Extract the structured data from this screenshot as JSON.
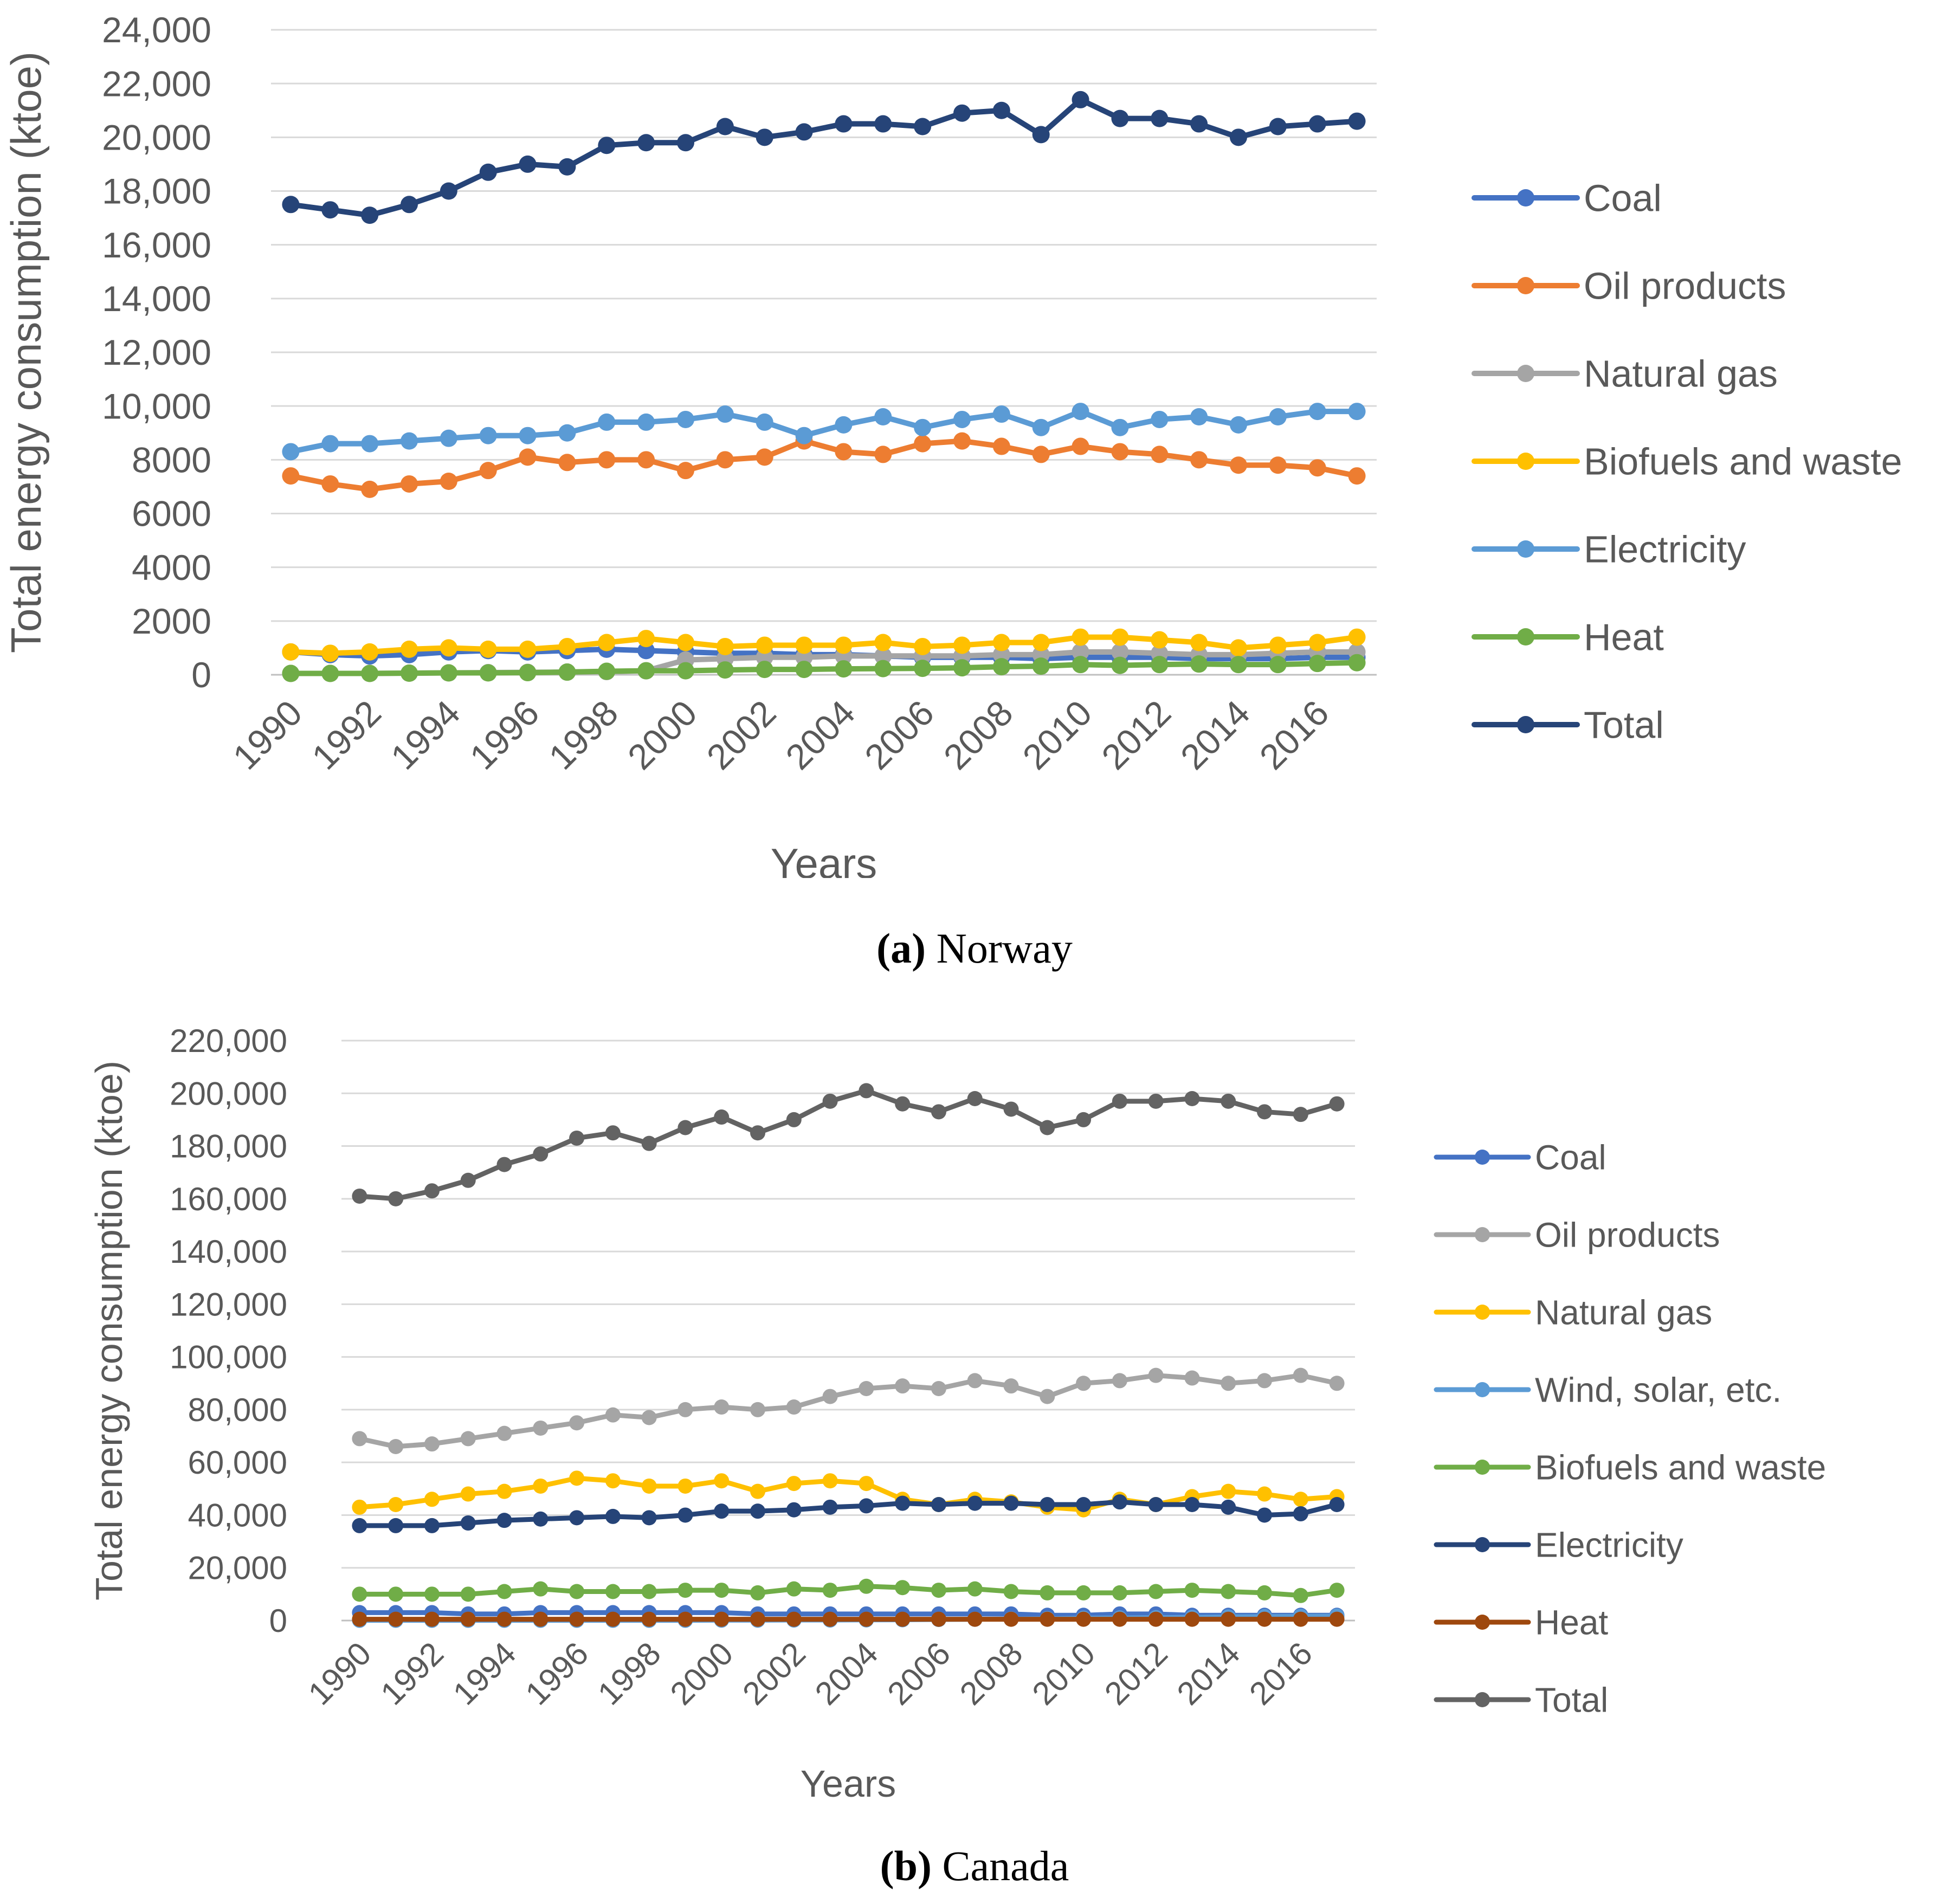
{
  "chart_data": [
    {
      "id": "norway",
      "type": "line",
      "caption_letter": "(a)",
      "caption_text": "Norway",
      "xlabel": "Years",
      "ylabel": "Total energy consumption (ktoe)",
      "ylim": [
        0,
        24000
      ],
      "yticks": [
        "0",
        "2000",
        "4000",
        "6000",
        "8000",
        "10,000",
        "12,000",
        "14,000",
        "16,000",
        "18,000",
        "20,000",
        "22,000",
        "24,000"
      ],
      "x": [
        1990,
        1991,
        1992,
        1993,
        1994,
        1995,
        1996,
        1997,
        1998,
        1999,
        2000,
        2001,
        2002,
        2003,
        2004,
        2005,
        2006,
        2007,
        2008,
        2009,
        2010,
        2011,
        2012,
        2013,
        2014,
        2015,
        2016,
        2017
      ],
      "xtick_labels": [
        "1990",
        "1992",
        "1994",
        "1996",
        "1998",
        "2000",
        "2002",
        "2004",
        "2006",
        "2008",
        "2010",
        "2012",
        "2014",
        "2016"
      ],
      "series": [
        {
          "name": "Coal",
          "color": "#4472C4",
          "values": [
            850,
            750,
            700,
            750,
            850,
            900,
            850,
            900,
            950,
            900,
            850,
            800,
            800,
            750,
            750,
            700,
            650,
            650,
            650,
            600,
            650,
            650,
            650,
            600,
            600,
            600,
            650,
            650
          ]
        },
        {
          "name": "Oil products",
          "color": "#ED7D31",
          "values": [
            7400,
            7100,
            6900,
            7100,
            7200,
            7600,
            8100,
            7900,
            8000,
            8000,
            7600,
            8000,
            8100,
            8700,
            8300,
            8200,
            8600,
            8700,
            8500,
            8200,
            8500,
            8300,
            8200,
            8000,
            7800,
            7800,
            7700,
            7400
          ]
        },
        {
          "name": "Natural gas",
          "color": "#A5A5A5",
          "values": [
            50,
            50,
            50,
            60,
            70,
            80,
            90,
            100,
            120,
            150,
            550,
            600,
            650,
            650,
            700,
            700,
            700,
            700,
            750,
            750,
            850,
            850,
            800,
            750,
            750,
            800,
            850,
            850
          ]
        },
        {
          "name": "Biofuels and waste",
          "color": "#FFC000",
          "values": [
            850,
            800,
            850,
            950,
            1000,
            950,
            950,
            1050,
            1200,
            1350,
            1200,
            1050,
            1100,
            1100,
            1100,
            1200,
            1050,
            1100,
            1200,
            1200,
            1400,
            1400,
            1300,
            1200,
            1000,
            1100,
            1200,
            1400
          ]
        },
        {
          "name": "Electricity",
          "color": "#5B9BD5",
          "values": [
            8300,
            8600,
            8600,
            8700,
            8800,
            8900,
            8900,
            9000,
            9400,
            9400,
            9500,
            9700,
            9400,
            8900,
            9300,
            9600,
            9200,
            9500,
            9700,
            9200,
            9800,
            9200,
            9500,
            9600,
            9300,
            9600,
            9800,
            9800
          ]
        },
        {
          "name": "Heat",
          "color": "#70AD47",
          "values": [
            50,
            50,
            50,
            60,
            70,
            70,
            80,
            100,
            130,
            150,
            150,
            180,
            200,
            200,
            220,
            230,
            240,
            260,
            300,
            320,
            380,
            350,
            380,
            400,
            380,
            380,
            420,
            450
          ]
        },
        {
          "name": "Total",
          "color": "#264478",
          "values": [
            17500,
            17300,
            17100,
            17500,
            18000,
            18700,
            19000,
            18900,
            19700,
            19800,
            19800,
            20400,
            20000,
            20200,
            20500,
            20500,
            20400,
            20900,
            21000,
            20100,
            21400,
            20700,
            20700,
            20500,
            20000,
            20400,
            20500,
            20600
          ]
        }
      ]
    },
    {
      "id": "canada",
      "type": "line",
      "caption_letter": "(b)",
      "caption_text": "Canada",
      "xlabel": "Years",
      "ylabel": "Total energy consumption (ktoe)",
      "ylim": [
        0,
        220000
      ],
      "yticks": [
        "0",
        "20,000",
        "40,000",
        "60,000",
        "80,000",
        "100,000",
        "120,000",
        "140,000",
        "160,000",
        "180,000",
        "200,000",
        "220,000"
      ],
      "x": [
        1990,
        1991,
        1992,
        1993,
        1994,
        1995,
        1996,
        1997,
        1998,
        1999,
        2000,
        2001,
        2002,
        2003,
        2004,
        2005,
        2006,
        2007,
        2008,
        2009,
        2010,
        2011,
        2012,
        2013,
        2014,
        2015,
        2016,
        2017
      ],
      "xtick_labels": [
        "1990",
        "1992",
        "1994",
        "1996",
        "1998",
        "2000",
        "2002",
        "2004",
        "2006",
        "2008",
        "2010",
        "2012",
        "2014",
        "2016"
      ],
      "series": [
        {
          "name": "Coal",
          "color": "#4472C4",
          "values": [
            3000,
            3000,
            3000,
            2500,
            2500,
            3000,
            3000,
            3000,
            3000,
            3000,
            3000,
            2500,
            2500,
            2500,
            2500,
            2500,
            2500,
            2500,
            2500,
            2000,
            2000,
            2500,
            2500,
            2000,
            2000,
            2000,
            2000,
            2000
          ]
        },
        {
          "name": "Oil products",
          "color": "#A5A5A5",
          "values": [
            69000,
            66000,
            67000,
            69000,
            71000,
            73000,
            75000,
            78000,
            77000,
            80000,
            81000,
            80000,
            81000,
            85000,
            88000,
            89000,
            88000,
            91000,
            89000,
            85000,
            90000,
            91000,
            93000,
            92000,
            90000,
            91000,
            93000,
            90000
          ]
        },
        {
          "name": "Natural gas",
          "color": "#FFC000",
          "values": [
            43000,
            44000,
            46000,
            48000,
            49000,
            51000,
            54000,
            53000,
            51000,
            51000,
            53000,
            49000,
            52000,
            53000,
            52000,
            46000,
            44000,
            46000,
            45000,
            43000,
            42000,
            46000,
            44000,
            47000,
            49000,
            48000,
            46000,
            47000
          ]
        },
        {
          "name": "Wind, solar, etc.",
          "color": "#5B9BD5",
          "values": [
            100,
            100,
            100,
            100,
            100,
            100,
            100,
            100,
            100,
            100,
            150,
            150,
            200,
            200,
            250,
            300,
            400,
            500,
            600,
            700,
            900,
            1000,
            1100,
            1200,
            1400,
            1500,
            1600,
            1700
          ]
        },
        {
          "name": "Biofuels and waste",
          "color": "#70AD47",
          "values": [
            10000,
            10000,
            10000,
            10000,
            11000,
            12000,
            11000,
            11000,
            11000,
            11500,
            11500,
            10500,
            12000,
            11500,
            13000,
            12500,
            11500,
            12000,
            11000,
            10500,
            10500,
            10500,
            11000,
            11500,
            11000,
            10500,
            9500,
            11500
          ]
        },
        {
          "name": "Electricity",
          "color": "#264478",
          "values": [
            36000,
            36000,
            36000,
            37000,
            38000,
            38500,
            39000,
            39500,
            39000,
            40000,
            41500,
            41500,
            42000,
            43000,
            43500,
            44500,
            44000,
            44500,
            44500,
            44000,
            44000,
            45000,
            44000,
            44000,
            43000,
            40000,
            40500,
            44000
          ]
        },
        {
          "name": "Heat",
          "color": "#9E480E",
          "values": [
            500,
            500,
            500,
            500,
            500,
            500,
            500,
            500,
            500,
            500,
            500,
            500,
            500,
            500,
            500,
            500,
            500,
            500,
            500,
            500,
            500,
            500,
            500,
            500,
            500,
            500,
            500,
            500
          ]
        },
        {
          "name": "Total",
          "color": "#636363",
          "values": [
            161000,
            160000,
            163000,
            167000,
            173000,
            177000,
            183000,
            185000,
            181000,
            187000,
            191000,
            185000,
            190000,
            197000,
            201000,
            196000,
            193000,
            198000,
            194000,
            187000,
            190000,
            197000,
            197000,
            198000,
            197000,
            193000,
            192000,
            196000
          ]
        }
      ]
    }
  ]
}
